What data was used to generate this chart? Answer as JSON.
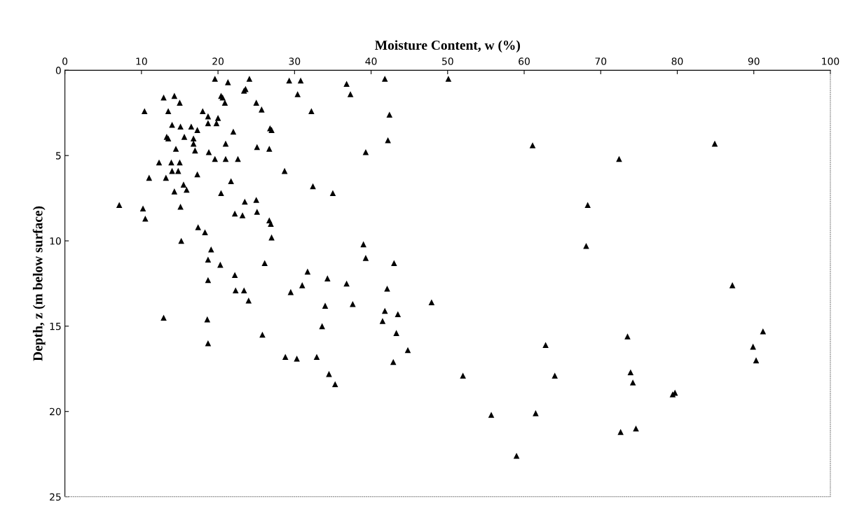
{
  "chart_data": {
    "type": "scatter",
    "xlabel": "Moisture Content, w (%)",
    "ylabel": "Depth, z (m below surface)",
    "xlim": [
      0,
      100
    ],
    "xticks": [
      0,
      10,
      20,
      30,
      40,
      50,
      60,
      70,
      80,
      90,
      100
    ],
    "ylim": [
      25,
      0
    ],
    "yticks": [
      0,
      5,
      10,
      15,
      20,
      25
    ],
    "grid": false,
    "marker": "triangle",
    "series": [
      {
        "color": "#000000",
        "x": [
          19.6,
          21.3,
          24.1,
          29.3,
          30.8,
          41.8,
          50.1,
          36.8,
          37.3,
          30.4,
          23.4,
          23.6,
          20.4,
          20.6,
          20.9,
          14.3,
          12.9,
          15.0,
          10.4,
          13.5,
          18.0,
          18.7,
          20.0,
          25.0,
          25.7,
          32.2,
          42.4,
          19.8,
          18.7,
          14.0,
          15.1,
          16.5,
          17.3,
          22.0,
          26.8,
          27.0,
          13.3,
          13.5,
          15.6,
          16.8,
          16.8,
          17.0,
          21.0,
          25.1,
          26.7,
          42.2,
          39.3,
          61.1,
          84.9,
          14.5,
          18.8,
          19.6,
          21.0,
          22.6,
          72.4,
          12.3,
          13.9,
          15.0,
          14.0,
          14.8,
          17.3,
          28.7,
          11.0,
          13.2,
          15.5,
          15.9,
          21.7,
          32.4,
          14.3,
          20.4,
          35.0,
          7.1,
          10.2,
          15.1,
          10.5,
          23.5,
          25.0,
          25.1,
          22.2,
          23.2,
          26.7,
          26.9,
          68.3,
          17.4,
          18.3,
          27.0,
          15.2,
          19.1,
          39.0,
          68.1,
          18.7,
          20.3,
          26.1,
          39.3,
          43.0,
          31.7,
          22.2,
          18.7,
          34.3,
          36.8,
          31.0,
          42.1,
          87.2,
          22.3,
          23.4,
          29.5,
          24.0,
          47.9,
          37.6,
          34.0,
          41.8,
          43.5,
          12.9,
          41.5,
          33.6,
          18.6,
          43.3,
          25.8,
          91.2,
          73.5,
          18.7,
          44.8,
          62.8,
          89.9,
          90.3,
          28.8,
          30.3,
          32.9,
          42.9,
          34.5,
          35.3,
          52.0,
          64.0,
          73.9,
          74.2,
          79.4,
          79.7,
          55.7,
          61.5,
          72.6,
          74.6,
          59.0
        ],
        "values": [
          0.5,
          0.7,
          0.5,
          0.6,
          0.6,
          0.5,
          0.5,
          0.8,
          1.4,
          1.4,
          1.2,
          1.1,
          1.5,
          1.6,
          1.9,
          1.5,
          1.6,
          1.9,
          2.4,
          2.4,
          2.4,
          2.7,
          2.8,
          1.9,
          2.3,
          2.4,
          2.6,
          3.1,
          3.1,
          3.2,
          3.3,
          3.3,
          3.5,
          3.6,
          3.4,
          3.5,
          3.9,
          4.0,
          3.9,
          4.0,
          4.3,
          4.7,
          4.3,
          4.5,
          4.6,
          4.1,
          4.8,
          4.4,
          4.3,
          4.6,
          4.8,
          5.2,
          5.2,
          5.2,
          5.2,
          5.4,
          5.4,
          5.4,
          5.9,
          5.9,
          6.1,
          5.9,
          6.3,
          6.3,
          6.7,
          7.0,
          6.5,
          6.8,
          7.1,
          7.2,
          7.2,
          7.9,
          8.1,
          8.0,
          8.7,
          7.7,
          7.6,
          8.3,
          8.4,
          8.5,
          8.8,
          9.0,
          7.9,
          9.2,
          9.5,
          9.8,
          10.0,
          10.5,
          10.2,
          10.3,
          11.1,
          11.4,
          11.3,
          11.0,
          11.3,
          11.8,
          12.0,
          12.3,
          12.2,
          12.5,
          12.6,
          12.8,
          12.6,
          12.9,
          12.9,
          13.0,
          13.5,
          13.6,
          13.7,
          13.8,
          14.1,
          14.3,
          14.5,
          14.7,
          15.0,
          14.6,
          15.4,
          15.5,
          15.3,
          15.6,
          16.0,
          16.4,
          16.1,
          16.2,
          17.0,
          16.8,
          16.9,
          16.8,
          17.1,
          17.8,
          18.4,
          17.9,
          17.9,
          17.7,
          18.3,
          19.0,
          18.9,
          20.2,
          20.1,
          21.2,
          21.0,
          22.6
        ]
      }
    ]
  }
}
